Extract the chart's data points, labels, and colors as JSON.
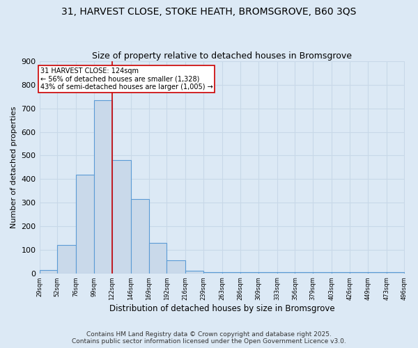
{
  "title_line1": "31, HARVEST CLOSE, STOKE HEATH, BROMSGROVE, B60 3QS",
  "title_line2": "Size of property relative to detached houses in Bromsgrove",
  "xlabel": "Distribution of detached houses by size in Bromsgrove",
  "ylabel": "Number of detached properties",
  "bin_edges": [
    29,
    52,
    76,
    99,
    122,
    146,
    169,
    192,
    216,
    239,
    263,
    286,
    309,
    333,
    356,
    379,
    403,
    426,
    449,
    473,
    496
  ],
  "bar_heights": [
    15,
    120,
    420,
    735,
    480,
    315,
    130,
    55,
    10,
    5,
    5,
    5,
    5,
    5,
    5,
    5,
    5,
    5,
    5,
    5
  ],
  "bar_facecolor": "#c9d9ea",
  "bar_edgecolor": "#5b9bd5",
  "bar_linewidth": 0.8,
  "vline_x": 122,
  "vline_color": "#cc0000",
  "vline_linewidth": 1.2,
  "annotation_text": "31 HARVEST CLOSE: 124sqm\n← 56% of detached houses are smaller (1,328)\n43% of semi-detached houses are larger (1,005) →",
  "annotation_box_edgecolor": "#cc0000",
  "annotation_box_facecolor": "#ffffff",
  "annotation_fontsize": 7.0,
  "ylim": [
    0,
    900
  ],
  "yticks": [
    0,
    100,
    200,
    300,
    400,
    500,
    600,
    700,
    800,
    900
  ],
  "background_color": "#dce9f5",
  "plot_bg_color": "#dce9f5",
  "grid_color": "#c8d8e8",
  "footnote_line1": "Contains HM Land Registry data © Crown copyright and database right 2025.",
  "footnote_line2": "Contains public sector information licensed under the Open Government Licence v3.0.",
  "footnote_fontsize": 6.5,
  "title_fontsize1": 10,
  "title_fontsize2": 9,
  "ylabel_fontsize": 8,
  "xlabel_fontsize": 8.5,
  "ytick_fontsize": 8,
  "xtick_fontsize": 6
}
